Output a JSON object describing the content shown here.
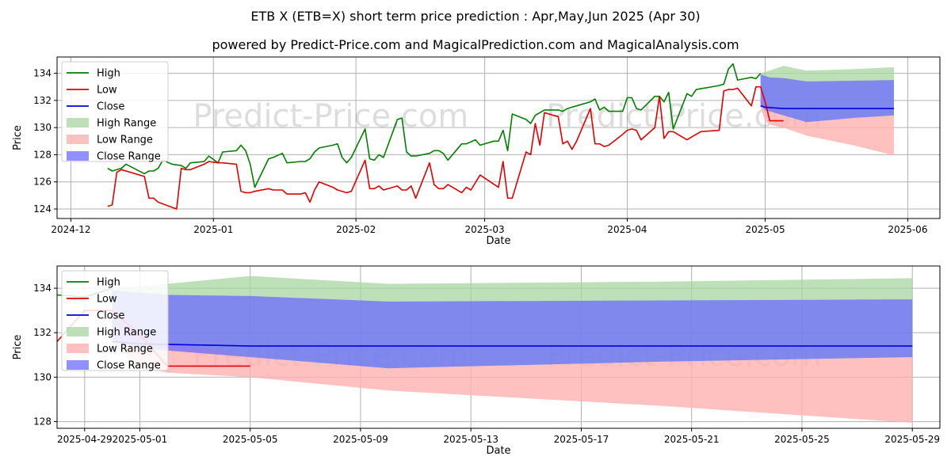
{
  "title": "ETB X (ETB=X) short term price prediction : Apr,May,Jun 2025 (Apr 30)",
  "subtitle": "powered by Predict-Price.com and MagicalPrediction.com and MagicalAnalysis.com",
  "watermark": "Predict-Price.com",
  "colors": {
    "high": "#008000",
    "low": "#e00000",
    "close": "#0000dd",
    "high_range": "#a8d5a0",
    "low_range": "#ffb0b0",
    "close_range": "#6b6bff"
  },
  "chart_data": [
    {
      "type": "line",
      "xlabel": "Date",
      "ylabel": "Price",
      "xlim": [
        "2024-11-28",
        "2025-06-08"
      ],
      "ylim": [
        123.3,
        135.2
      ],
      "xticks": [
        "2024-12-01",
        "2025-01-01",
        "2025-02-01",
        "2025-03-01",
        "2025-04-01",
        "2025-05-01",
        "2025-06-01"
      ],
      "xtick_labels": [
        "2024-12",
        "2025-01",
        "2025-02",
        "2025-03",
        "2025-04",
        "2025-05",
        "2025-06"
      ],
      "yticks": [
        124,
        126,
        128,
        130,
        132,
        134
      ],
      "grid": true,
      "legend": "top-left",
      "legend_entries": [
        "High",
        "Low",
        "Close",
        "High Range",
        "Low Range",
        "Close Range"
      ],
      "series": [
        {
          "name": "High",
          "points": [
            [
              "2024-12-09",
              127.0
            ],
            [
              "2024-12-10",
              126.8
            ],
            [
              "2024-12-12",
              127.0
            ],
            [
              "2024-12-13",
              127.3
            ],
            [
              "2024-12-17",
              126.6
            ],
            [
              "2024-12-18",
              126.8
            ],
            [
              "2024-12-19",
              126.8
            ],
            [
              "2024-12-20",
              127.0
            ],
            [
              "2024-12-21",
              127.6
            ],
            [
              "2024-12-23",
              127.3
            ],
            [
              "2024-12-25",
              127.2
            ],
            [
              "2024-12-26",
              127.0
            ],
            [
              "2024-12-27",
              127.4
            ],
            [
              "2024-12-30",
              127.5
            ],
            [
              "2024-12-31",
              127.9
            ],
            [
              "2025-01-02",
              127.4
            ],
            [
              "2025-01-03",
              128.2
            ],
            [
              "2025-01-06",
              128.3
            ],
            [
              "2025-01-07",
              128.7
            ],
            [
              "2025-01-08",
              128.3
            ],
            [
              "2025-01-09",
              127.3
            ],
            [
              "2025-01-10",
              125.6
            ],
            [
              "2025-01-13",
              127.7
            ],
            [
              "2025-01-14",
              127.8
            ],
            [
              "2025-01-16",
              128.1
            ],
            [
              "2025-01-17",
              127.4
            ],
            [
              "2025-01-20",
              127.5
            ],
            [
              "2025-01-21",
              127.5
            ],
            [
              "2025-01-22",
              127.7
            ],
            [
              "2025-01-23",
              128.2
            ],
            [
              "2025-01-24",
              128.5
            ],
            [
              "2025-01-27",
              128.7
            ],
            [
              "2025-01-28",
              128.8
            ],
            [
              "2025-01-29",
              127.8
            ],
            [
              "2025-01-30",
              127.4
            ],
            [
              "2025-01-31",
              127.8
            ],
            [
              "2025-02-03",
              129.9
            ],
            [
              "2025-02-04",
              127.7
            ],
            [
              "2025-02-05",
              127.6
            ],
            [
              "2025-02-06",
              128.0
            ],
            [
              "2025-02-07",
              127.8
            ],
            [
              "2025-02-10",
              130.6
            ],
            [
              "2025-02-11",
              130.7
            ],
            [
              "2025-02-12",
              128.2
            ],
            [
              "2025-02-13",
              127.9
            ],
            [
              "2025-02-14",
              127.9
            ],
            [
              "2025-02-17",
              128.1
            ],
            [
              "2025-02-18",
              128.3
            ],
            [
              "2025-02-19",
              128.3
            ],
            [
              "2025-02-20",
              128.1
            ],
            [
              "2025-02-21",
              127.6
            ],
            [
              "2025-02-24",
              128.8
            ],
            [
              "2025-02-25",
              128.8
            ],
            [
              "2025-02-27",
              129.1
            ],
            [
              "2025-02-28",
              128.7
            ],
            [
              "2025-03-03",
              129.0
            ],
            [
              "2025-03-04",
              129.0
            ],
            [
              "2025-03-05",
              129.8
            ],
            [
              "2025-03-06",
              128.3
            ],
            [
              "2025-03-07",
              131.0
            ],
            [
              "2025-03-10",
              130.6
            ],
            [
              "2025-03-11",
              130.3
            ],
            [
              "2025-03-12",
              130.9
            ],
            [
              "2025-03-14",
              131.3
            ],
            [
              "2025-03-17",
              131.3
            ],
            [
              "2025-03-18",
              131.2
            ],
            [
              "2025-03-19",
              131.4
            ],
            [
              "2025-03-20",
              131.5
            ],
            [
              "2025-03-21",
              131.6
            ],
            [
              "2025-03-24",
              131.9
            ],
            [
              "2025-03-25",
              132.1
            ],
            [
              "2025-03-26",
              131.3
            ],
            [
              "2025-03-27",
              131.5
            ],
            [
              "2025-03-28",
              131.2
            ],
            [
              "2025-03-31",
              131.2
            ],
            [
              "2025-04-01",
              132.2
            ],
            [
              "2025-04-02",
              132.2
            ],
            [
              "2025-04-03",
              131.4
            ],
            [
              "2025-04-04",
              131.3
            ],
            [
              "2025-04-07",
              132.3
            ],
            [
              "2025-04-08",
              132.3
            ],
            [
              "2025-04-09",
              131.9
            ],
            [
              "2025-04-10",
              132.6
            ],
            [
              "2025-04-11",
              129.9
            ],
            [
              "2025-04-14",
              132.5
            ],
            [
              "2025-04-15",
              132.3
            ],
            [
              "2025-04-16",
              132.8
            ],
            [
              "2025-04-21",
              133.1
            ],
            [
              "2025-04-22",
              133.2
            ],
            [
              "2025-04-23",
              134.3
            ],
            [
              "2025-04-24",
              134.7
            ],
            [
              "2025-04-25",
              133.5
            ],
            [
              "2025-04-28",
              133.7
            ],
            [
              "2025-04-29",
              133.6
            ],
            [
              "2025-04-30",
              134.0
            ]
          ]
        },
        {
          "name": "Low",
          "points": [
            [
              "2024-12-09",
              124.2
            ],
            [
              "2024-12-10",
              124.3
            ],
            [
              "2024-12-11",
              126.7
            ],
            [
              "2024-12-12",
              126.9
            ],
            [
              "2024-12-17",
              126.4
            ],
            [
              "2024-12-18",
              124.8
            ],
            [
              "2024-12-19",
              124.8
            ],
            [
              "2024-12-20",
              124.5
            ],
            [
              "2024-12-24",
              124.0
            ],
            [
              "2024-12-25",
              127.0
            ],
            [
              "2024-12-26",
              126.9
            ],
            [
              "2024-12-27",
              126.9
            ],
            [
              "2024-12-30",
              127.3
            ],
            [
              "2024-12-31",
              127.5
            ],
            [
              "2025-01-02",
              127.4
            ],
            [
              "2025-01-03",
              127.4
            ],
            [
              "2025-01-06",
              127.3
            ],
            [
              "2025-01-07",
              125.3
            ],
            [
              "2025-01-08",
              125.2
            ],
            [
              "2025-01-09",
              125.2
            ],
            [
              "2025-01-10",
              125.3
            ],
            [
              "2025-01-13",
              125.5
            ],
            [
              "2025-01-14",
              125.4
            ],
            [
              "2025-01-16",
              125.4
            ],
            [
              "2025-01-17",
              125.1
            ],
            [
              "2025-01-20",
              125.1
            ],
            [
              "2025-01-21",
              125.2
            ],
            [
              "2025-01-22",
              124.5
            ],
            [
              "2025-01-23",
              125.4
            ],
            [
              "2025-01-24",
              126.0
            ],
            [
              "2025-01-27",
              125.6
            ],
            [
              "2025-01-28",
              125.4
            ],
            [
              "2025-01-30",
              125.2
            ],
            [
              "2025-01-31",
              125.3
            ],
            [
              "2025-02-03",
              127.6
            ],
            [
              "2025-02-04",
              125.5
            ],
            [
              "2025-02-05",
              125.5
            ],
            [
              "2025-02-06",
              125.7
            ],
            [
              "2025-02-07",
              125.4
            ],
            [
              "2025-02-10",
              125.7
            ],
            [
              "2025-02-11",
              125.4
            ],
            [
              "2025-02-12",
              125.4
            ],
            [
              "2025-02-13",
              125.7
            ],
            [
              "2025-02-14",
              124.8
            ],
            [
              "2025-02-17",
              127.4
            ],
            [
              "2025-02-18",
              125.8
            ],
            [
              "2025-02-19",
              125.5
            ],
            [
              "2025-02-20",
              125.5
            ],
            [
              "2025-02-21",
              125.8
            ],
            [
              "2025-02-24",
              125.2
            ],
            [
              "2025-02-25",
              125.6
            ],
            [
              "2025-02-26",
              125.4
            ],
            [
              "2025-02-28",
              126.5
            ],
            [
              "2025-03-04",
              125.6
            ],
            [
              "2025-03-05",
              127.5
            ],
            [
              "2025-03-06",
              124.8
            ],
            [
              "2025-03-07",
              124.8
            ],
            [
              "2025-03-10",
              128.2
            ],
            [
              "2025-03-11",
              128.0
            ],
            [
              "2025-03-12",
              130.3
            ],
            [
              "2025-03-13",
              128.7
            ],
            [
              "2025-03-14",
              131.1
            ],
            [
              "2025-03-17",
              130.8
            ],
            [
              "2025-03-18",
              128.8
            ],
            [
              "2025-03-19",
              129.0
            ],
            [
              "2025-03-20",
              128.4
            ],
            [
              "2025-03-21",
              129.0
            ],
            [
              "2025-03-24",
              131.4
            ],
            [
              "2025-03-25",
              128.8
            ],
            [
              "2025-03-26",
              128.8
            ],
            [
              "2025-03-27",
              128.6
            ],
            [
              "2025-03-28",
              128.7
            ],
            [
              "2025-03-31",
              129.5
            ],
            [
              "2025-04-01",
              129.8
            ],
            [
              "2025-04-02",
              129.9
            ],
            [
              "2025-04-03",
              129.8
            ],
            [
              "2025-04-04",
              129.1
            ],
            [
              "2025-04-07",
              130.0
            ],
            [
              "2025-04-08",
              132.3
            ],
            [
              "2025-04-09",
              129.2
            ],
            [
              "2025-04-10",
              129.7
            ],
            [
              "2025-04-11",
              129.7
            ],
            [
              "2025-04-14",
              129.1
            ],
            [
              "2025-04-15",
              129.3
            ],
            [
              "2025-04-16",
              129.5
            ],
            [
              "2025-04-17",
              129.7
            ],
            [
              "2025-04-21",
              129.8
            ],
            [
              "2025-04-22",
              132.7
            ],
            [
              "2025-04-23",
              132.8
            ],
            [
              "2025-04-24",
              132.8
            ],
            [
              "2025-04-25",
              132.9
            ],
            [
              "2025-04-28",
              131.6
            ],
            [
              "2025-04-29",
              133.0
            ],
            [
              "2025-04-30",
              133.0
            ],
            [
              "2025-05-01",
              131.9
            ],
            [
              "2025-05-02",
              130.5
            ],
            [
              "2025-05-05",
              130.5
            ]
          ]
        }
      ]
    },
    {
      "type": "area",
      "xlabel": "Date",
      "ylabel": "Price",
      "xlim": [
        "2025-04-28",
        "2025-05-30"
      ],
      "ylim": [
        127.7,
        135.0
      ],
      "xticks": [
        "2025-04-29",
        "2025-05-01",
        "2025-05-05",
        "2025-05-09",
        "2025-05-13",
        "2025-05-17",
        "2025-05-21",
        "2025-05-25",
        "2025-05-29"
      ],
      "yticks": [
        128,
        130,
        132,
        134
      ],
      "grid": true,
      "legend": "top-left",
      "legend_entries": [
        "High",
        "Low",
        "Close",
        "High Range",
        "Low Range",
        "Close Range"
      ],
      "ranges": {
        "dates": [
          "2025-04-30",
          "2025-05-01",
          "2025-05-02",
          "2025-05-05",
          "2025-05-10",
          "2025-05-20",
          "2025-05-29"
        ],
        "high_range": [
          [
            131.7,
            134.0
          ],
          [
            131.3,
            134.1
          ],
          [
            131.2,
            134.2
          ],
          [
            130.9,
            134.55
          ],
          [
            130.4,
            134.2
          ],
          [
            130.7,
            134.3
          ],
          [
            130.9,
            134.45
          ]
        ],
        "low_range": [
          [
            131.5,
            133.0
          ],
          [
            130.5,
            132.2
          ],
          [
            130.2,
            131.6
          ],
          [
            130.0,
            130.9
          ],
          [
            129.4,
            130.4
          ],
          [
            128.7,
            130.7
          ],
          [
            127.95,
            130.9
          ]
        ],
        "close_range": [
          [
            131.6,
            133.9
          ],
          [
            131.3,
            133.8
          ],
          [
            131.2,
            133.7
          ],
          [
            130.9,
            133.65
          ],
          [
            130.4,
            133.4
          ],
          [
            130.7,
            133.45
          ],
          [
            130.9,
            133.5
          ]
        ]
      },
      "close_line": [
        [
          "2025-04-30",
          131.6
        ],
        [
          "2025-05-01",
          131.5
        ],
        [
          "2025-05-03",
          131.45
        ],
        [
          "2025-05-05",
          131.4
        ],
        [
          "2025-05-29",
          131.4
        ]
      ]
    }
  ]
}
